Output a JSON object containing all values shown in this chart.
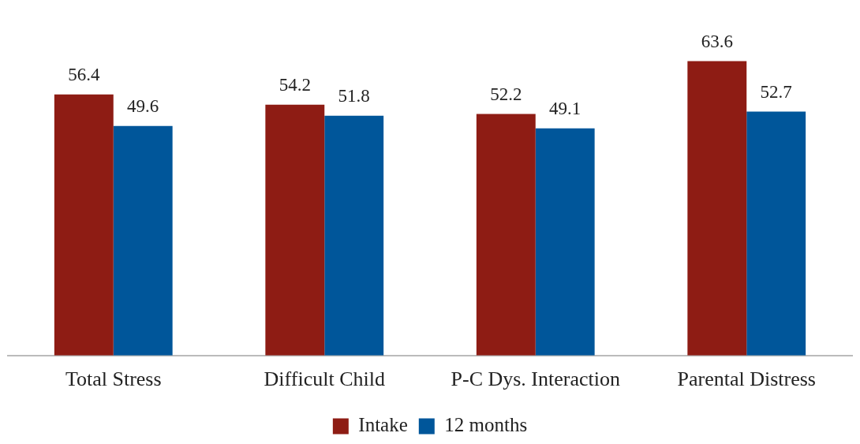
{
  "chart_data": {
    "type": "bar",
    "categories": [
      "Total Stress",
      "Difficult Child",
      "P-C Dys. Interaction",
      "Parental Distress"
    ],
    "series": [
      {
        "name": "Intake",
        "color": "#8e1c14",
        "values": [
          56.4,
          54.2,
          52.2,
          63.6
        ]
      },
      {
        "name": "12 months",
        "color": "#00569a",
        "values": [
          49.6,
          51.8,
          49.1,
          52.7
        ]
      }
    ],
    "data_labels": true,
    "grid": false,
    "legend": "bottom"
  }
}
